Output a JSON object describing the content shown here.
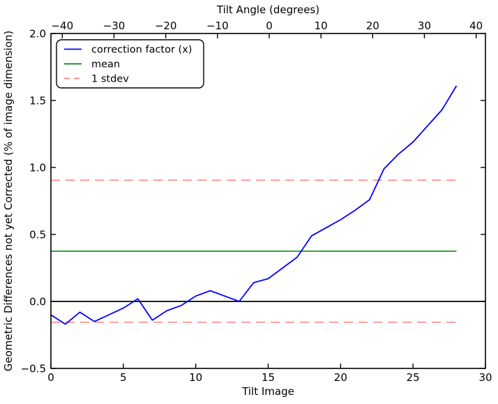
{
  "figure": {
    "background": "#ffffff",
    "frame_color": "#000000"
  },
  "chart_data": {
    "type": "line",
    "title_top_axis": "Tilt Angle (degrees)",
    "xlabel_bottom": "Tilt Image",
    "ylabel": "Geometric Differences not yet Corrected (% of image dimension)",
    "x_bottom": {
      "range": [
        0,
        30
      ],
      "ticks": [
        0,
        5,
        10,
        15,
        20,
        25,
        30
      ]
    },
    "x_top": {
      "range": [
        -42.2,
        41.8
      ],
      "ticks": [
        -40,
        -30,
        -20,
        -10,
        0,
        10,
        20,
        30,
        40
      ]
    },
    "y": {
      "range": [
        -0.5,
        2.0
      ],
      "ticks": [
        2.0,
        1.5,
        1.0,
        0.5,
        0.0,
        -0.5
      ]
    },
    "grid": false,
    "legend_position": "upper-left",
    "series": [
      {
        "name": "correction factor (x)",
        "color": "#0000ff",
        "style": "solid",
        "x": [
          0,
          1,
          2,
          3,
          4,
          5,
          6,
          7,
          8,
          9,
          10,
          11,
          12,
          13,
          14,
          15,
          16,
          17,
          18,
          19,
          20,
          21,
          22,
          23,
          24,
          25,
          26,
          27,
          28
        ],
        "values": [
          -0.1,
          -0.17,
          -0.08,
          -0.15,
          -0.1,
          -0.05,
          0.02,
          -0.14,
          -0.07,
          -0.03,
          0.04,
          0.08,
          0.04,
          0.0,
          0.14,
          0.17,
          0.25,
          0.33,
          0.49,
          0.55,
          0.61,
          0.68,
          0.76,
          0.99,
          1.1,
          1.19,
          1.31,
          1.43,
          1.61
        ]
      }
    ],
    "reference_lines": [
      {
        "name": "zero-line",
        "value": 0.0,
        "color": "#000000",
        "style": "solid",
        "x_extent": [
          0,
          30
        ]
      },
      {
        "name": "mean-line",
        "value": 0.375,
        "color": "#008000",
        "style": "solid",
        "x_extent": [
          0,
          28
        ]
      },
      {
        "name": "stdev-upper-line",
        "value": 0.905,
        "color": "#ff7f7f",
        "style": "dashed",
        "x_extent": [
          0,
          28
        ]
      },
      {
        "name": "stdev-lower-line",
        "value": -0.155,
        "color": "#ff7f7f",
        "style": "dashed",
        "x_extent": [
          0,
          28
        ]
      }
    ],
    "mean": 0.375,
    "stdev": 0.53,
    "legend": [
      {
        "label": "correction factor (x)",
        "color": "#0000ff",
        "style": "solid"
      },
      {
        "label": "mean",
        "color": "#008000",
        "style": "solid"
      },
      {
        "label": "1 stdev",
        "color": "#ff7f7f",
        "style": "dashed"
      }
    ]
  }
}
